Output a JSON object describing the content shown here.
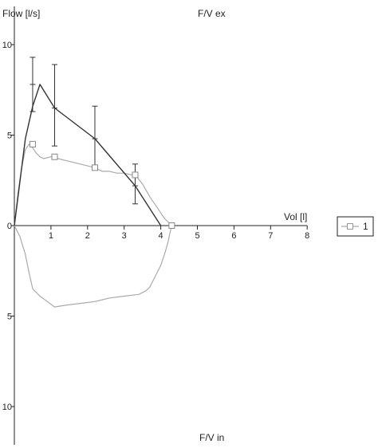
{
  "chart_data": {
    "type": "line",
    "title_top": "F/V  ex",
    "title_bottom": "F/V in",
    "ylabel": "Flow  [l/s]",
    "xlabel": "Vol  [l]",
    "xlim": [
      0,
      8
    ],
    "ylim": [
      -12,
      12
    ],
    "x_ticks": [
      1,
      2,
      3,
      4,
      5,
      6,
      7,
      8
    ],
    "y_ticks": [
      {
        "value": 10,
        "label": "10"
      },
      {
        "value": 5,
        "label": "5"
      },
      {
        "value": 0,
        "label": "0"
      },
      {
        "value": -5,
        "label": "5"
      },
      {
        "value": -10,
        "label": "10"
      }
    ],
    "legend": {
      "position": "right",
      "entries": [
        {
          "label": "1",
          "color": "#aaaaaa",
          "marker": "square"
        }
      ]
    },
    "series": [
      {
        "name": "1",
        "role": "measured expiratory",
        "color": "#aaaaaa",
        "x": [
          0.0,
          0.1,
          0.2,
          0.3,
          0.4,
          0.5,
          0.6,
          0.7,
          0.8,
          1.0,
          1.2,
          1.4,
          1.6,
          1.8,
          2.0,
          2.2,
          2.4,
          2.6,
          2.8,
          3.0,
          3.2,
          3.3,
          3.5,
          3.7,
          3.9,
          4.0,
          4.1,
          4.2,
          4.3
        ],
        "y": [
          0.0,
          1.8,
          3.2,
          4.2,
          4.5,
          4.3,
          4.0,
          3.8,
          3.7,
          3.8,
          3.7,
          3.6,
          3.5,
          3.4,
          3.3,
          3.2,
          3.0,
          3.0,
          2.9,
          2.9,
          2.8,
          2.8,
          2.3,
          1.6,
          1.0,
          0.7,
          0.4,
          0.2,
          0.0
        ]
      },
      {
        "name": "",
        "role": "measured inspiratory",
        "color": "#aaaaaa",
        "x": [
          0.0,
          0.15,
          0.3,
          0.4,
          0.5,
          0.7,
          0.9,
          1.1,
          1.4,
          1.8,
          2.2,
          2.6,
          3.0,
          3.4,
          3.6,
          3.7,
          3.8,
          3.9,
          4.0,
          4.1,
          4.2,
          4.25,
          4.3
        ],
        "y": [
          0.0,
          -0.6,
          -1.6,
          -2.6,
          -3.5,
          -3.9,
          -4.2,
          -4.5,
          -4.4,
          -4.3,
          -4.2,
          -4.0,
          -3.9,
          -3.8,
          -3.6,
          -3.4,
          -3.0,
          -2.6,
          -2.2,
          -1.6,
          -0.9,
          -0.4,
          0.0
        ]
      },
      {
        "name": "",
        "role": "predicted expiratory",
        "color": "#333333",
        "x": [
          0.0,
          0.15,
          0.3,
          0.5,
          0.7,
          1.1,
          2.2,
          3.3,
          4.0
        ],
        "y": [
          0.0,
          2.4,
          4.8,
          6.6,
          7.8,
          6.5,
          4.8,
          2.2,
          0.0
        ]
      }
    ],
    "markers": [
      {
        "x": 0.5,
        "y": 4.5
      },
      {
        "x": 1.1,
        "y": 3.8
      },
      {
        "x": 2.2,
        "y": 3.2
      },
      {
        "x": 3.3,
        "y": 2.8
      },
      {
        "x": 4.3,
        "y": 0.0
      }
    ],
    "error_bars": [
      {
        "x": 0.5,
        "low": 6.3,
        "mid": 7.8,
        "high": 9.3
      },
      {
        "x": 1.1,
        "low": 4.4,
        "mid": 6.5,
        "high": 8.9
      },
      {
        "x": 2.2,
        "low": 3.1,
        "mid": 4.8,
        "high": 6.6
      },
      {
        "x": 3.3,
        "low": 1.2,
        "mid": 2.2,
        "high": 3.4
      }
    ],
    "grid": false
  }
}
